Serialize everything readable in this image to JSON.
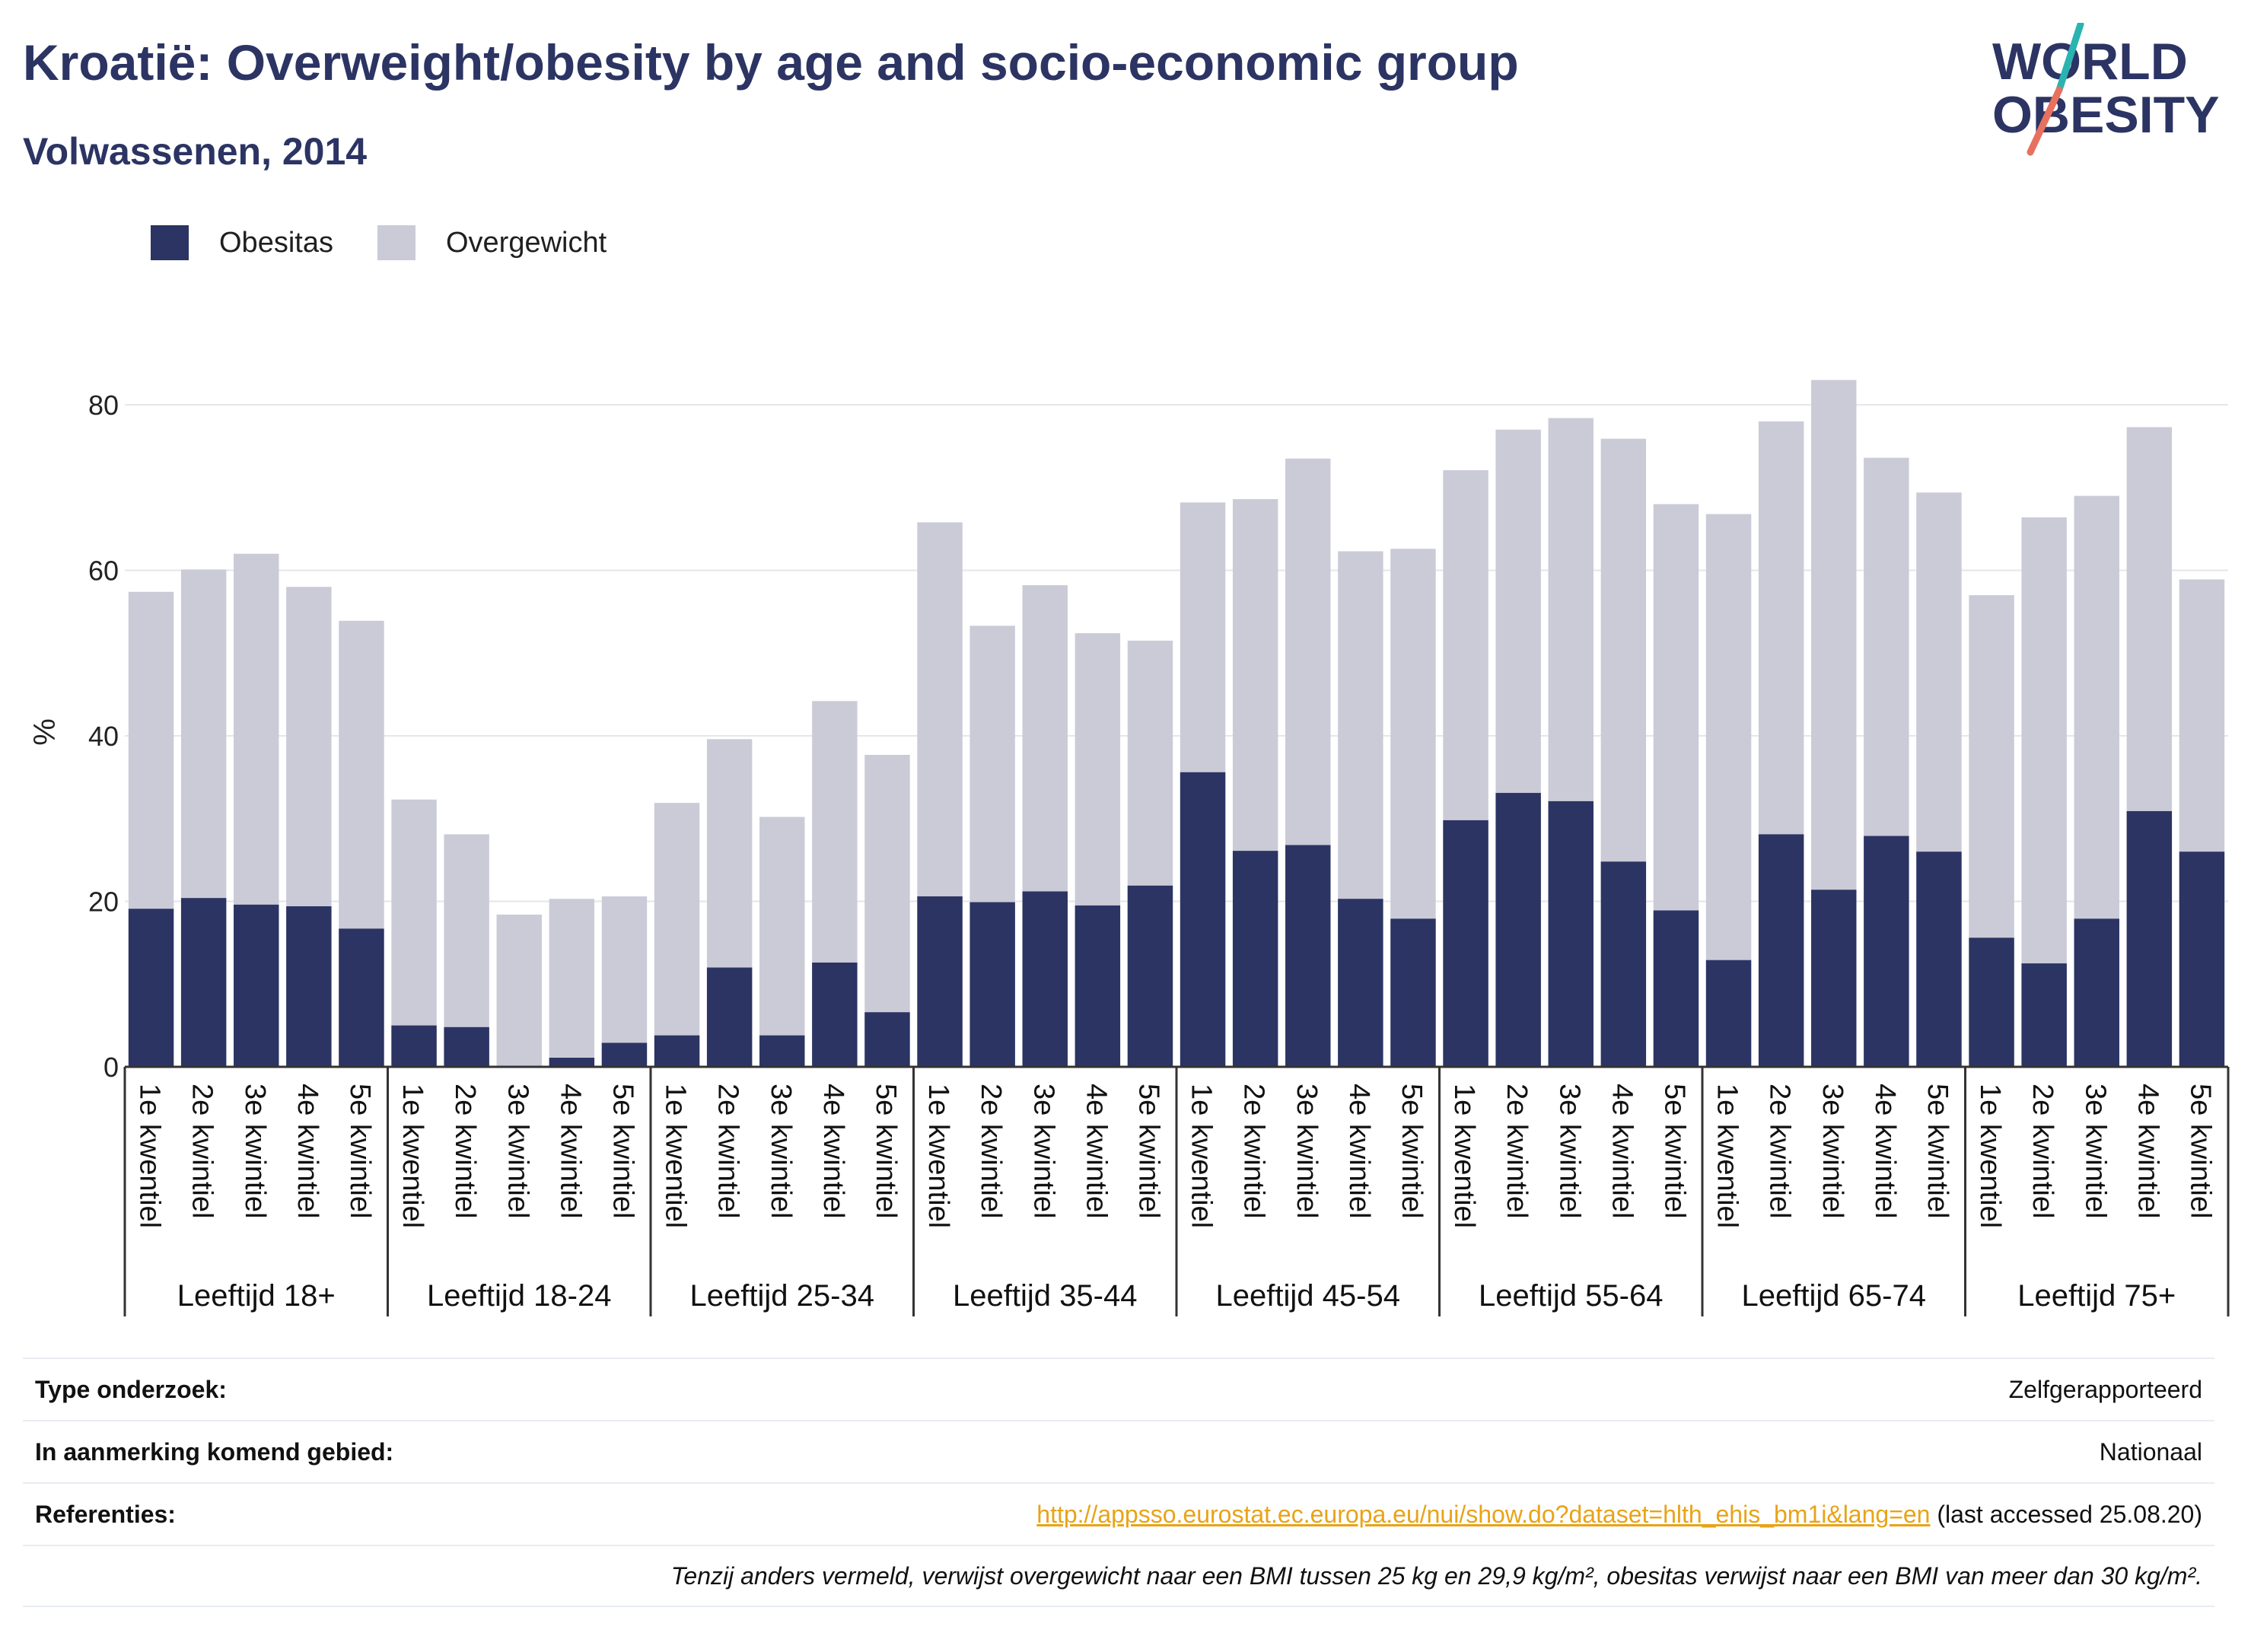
{
  "header": {
    "title": "Kroatië: Overweight/obesity by age and socio-economic group",
    "subtitle": "Volwassenen, 2014"
  },
  "logo": {
    "line1": "WORLD",
    "line2": "OBESITY"
  },
  "colors": {
    "obesity": "#2b3463",
    "overweight": "#cacbd7",
    "title": "#2b3463",
    "link": "#e8a317"
  },
  "chart_data": {
    "type": "bar",
    "stacked": false,
    "ylabel": "%",
    "ylim": [
      0,
      90
    ],
    "yticks": [
      0,
      20,
      40,
      60,
      80
    ],
    "grid": true,
    "legend": {
      "position": "top-left",
      "entries": [
        "Obesitas",
        "Overgewicht"
      ]
    },
    "groups": [
      {
        "label": "Leeftijd 18+",
        "categories": [
          "1e kwentiel",
          "2e kwintiel",
          "3e kwintiel",
          "4e kwintiel",
          "5e kwintiel"
        ]
      },
      {
        "label": "Leeftijd 18-24",
        "categories": [
          "1e kwentiel",
          "2e kwintiel",
          "3e kwintiel",
          "4e kwintiel",
          "5e kwintiel"
        ]
      },
      {
        "label": "Leeftijd 25-34",
        "categories": [
          "1e kwentiel",
          "2e kwintiel",
          "3e kwintiel",
          "4e kwintiel",
          "5e kwintiel"
        ]
      },
      {
        "label": "Leeftijd 35-44",
        "categories": [
          "1e kwentiel",
          "2e kwintiel",
          "3e kwintiel",
          "4e kwintiel",
          "5e kwintiel"
        ]
      },
      {
        "label": "Leeftijd 45-54",
        "categories": [
          "1e kwentiel",
          "2e kwintiel",
          "3e kwintiel",
          "4e kwintiel",
          "5e kwintiel"
        ]
      },
      {
        "label": "Leeftijd 55-64",
        "categories": [
          "1e kwentiel",
          "2e kwintiel",
          "3e kwintiel",
          "4e kwintiel",
          "5e kwintiel"
        ]
      },
      {
        "label": "Leeftijd 65-74",
        "categories": [
          "1e kwentiel",
          "2e kwintiel",
          "3e kwintiel",
          "4e kwintiel",
          "5e kwintiel"
        ]
      },
      {
        "label": "Leeftijd 75+",
        "categories": [
          "1e kwentiel",
          "2e kwintiel",
          "3e kwintiel",
          "4e kwintiel",
          "5e kwintiel"
        ]
      }
    ],
    "series": [
      {
        "name": "Overgewicht",
        "values": [
          57.4,
          60.1,
          62.0,
          58.0,
          53.9,
          32.3,
          28.1,
          18.4,
          20.3,
          20.6,
          31.9,
          39.6,
          30.2,
          44.2,
          37.7,
          65.8,
          53.3,
          58.2,
          52.4,
          51.5,
          68.2,
          68.6,
          73.5,
          62.3,
          62.6,
          72.1,
          77.0,
          78.4,
          75.9,
          68.0,
          66.8,
          78.0,
          83.0,
          73.6,
          69.4,
          57.0,
          66.4,
          69.0,
          77.3,
          58.9
        ]
      },
      {
        "name": "Obesitas",
        "values": [
          19.1,
          20.4,
          19.6,
          19.4,
          16.7,
          5.0,
          4.8,
          0.0,
          1.1,
          2.9,
          3.8,
          12.0,
          3.8,
          12.6,
          6.6,
          20.6,
          19.9,
          21.2,
          19.5,
          21.9,
          35.6,
          26.1,
          26.8,
          20.3,
          17.9,
          29.8,
          33.1,
          32.1,
          24.8,
          18.9,
          12.9,
          28.1,
          21.4,
          27.9,
          26.0,
          15.6,
          12.5,
          17.9,
          30.9,
          26.0
        ]
      }
    ]
  },
  "info": {
    "rows": [
      {
        "key": "Type onderzoek:",
        "value": "Zelfgerapporteerd"
      },
      {
        "key": "In aanmerking komend gebied:",
        "value": "Nationaal"
      },
      {
        "key": "Referenties:",
        "link": "http://appsso.eurostat.ec.europa.eu/nui/show.do?dataset=hlth_ehis_bm1i&lang=en",
        "suffix": " (last accessed 25.08.20)"
      }
    ],
    "note": "Tenzij anders vermeld, verwijst overgewicht naar een BMI tussen 25 kg en 29,9 kg/m², obesitas verwijst naar een BMI van meer dan 30 kg/m²."
  }
}
